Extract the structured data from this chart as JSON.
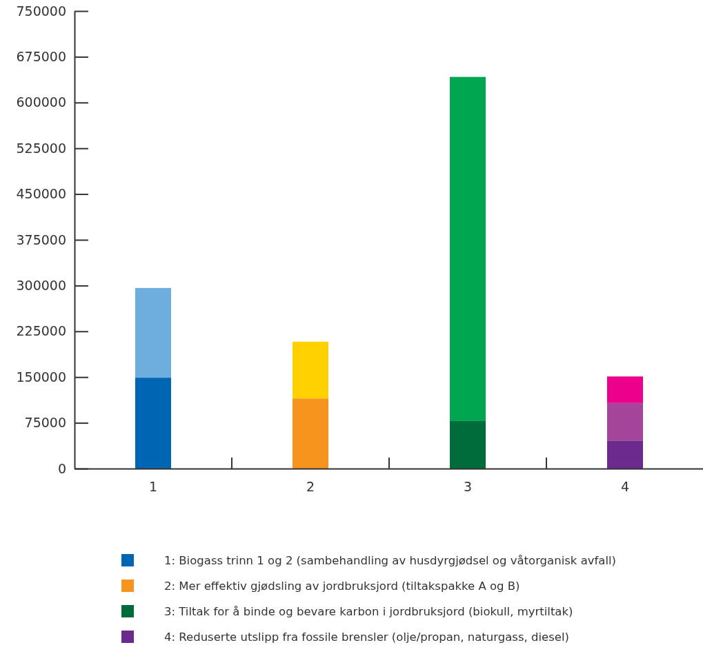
{
  "chart_data": {
    "type": "bar",
    "stacked": true,
    "categories": [
      "1",
      "2",
      "3",
      "4"
    ],
    "series": [
      {
        "colors": [
          "#0066b3",
          "#f7941d",
          "#006c3b",
          "#6d2a8e"
        ],
        "values": [
          149000,
          115000,
          78000,
          46000
        ]
      },
      {
        "colors": [
          "#6daedf",
          "#ffd100",
          "#00a650",
          "#a4449a"
        ],
        "values": [
          147000,
          93000,
          564000,
          61500
        ]
      },
      {
        "colors": [
          null,
          null,
          null,
          "#ec008c"
        ],
        "values": [
          null,
          null,
          null,
          43500
        ]
      }
    ],
    "ylim": [
      0,
      750000
    ],
    "yticks": [
      0,
      75000,
      150000,
      225000,
      300000,
      375000,
      450000,
      525000,
      600000,
      675000,
      750000
    ],
    "grid": false,
    "annotations": [
      "1:  Biogass trinn 1 og 2 (sambehandling av husdyrgjødsel og våtorganisk avfall)",
      "2:  Mer effektiv gjødsling av jordbruksjord (tiltakspakke A og B)",
      "3:  Tiltak for å binde og bevare karbon i jordbruksjord (biokull, myrtiltak)",
      "4:  Reduserte utslipp fra fossile brensler (olje/propan, naturgass, diesel)"
    ]
  }
}
